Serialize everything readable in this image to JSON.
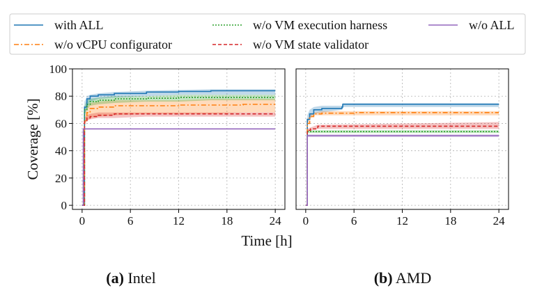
{
  "figure": {
    "x_label": "Time [h]",
    "y_label": "Coverage [%]"
  },
  "legend": {
    "placement": "top",
    "entries": [
      {
        "name": "with ALL",
        "color": "#1f77b4",
        "dash": "solid"
      },
      {
        "name": "w/o vCPU configurator",
        "color": "#ff7f0e",
        "dash": "dashdot"
      },
      {
        "name": "w/o VM execution harness",
        "color": "#2ca02c",
        "dash": "dotted"
      },
      {
        "name": "w/o VM state validator",
        "color": "#d62728",
        "dash": "dashed"
      },
      {
        "name": "w/o ALL",
        "color": "#9467bd",
        "dash": "solid"
      }
    ]
  },
  "chart_data": [
    {
      "type": "line",
      "caption_letter": "(a)",
      "caption_name": "Intel",
      "x_ticks": [
        0,
        6,
        12,
        18,
        24
      ],
      "y_ticks": [
        0,
        20,
        40,
        60,
        80,
        100
      ],
      "xlim": [
        -1.2,
        25.2
      ],
      "ylim": [
        -3,
        100
      ],
      "grid": true,
      "series": [
        {
          "name": "with ALL",
          "x": [
            0,
            0.3,
            0.6,
            1,
            2,
            4,
            8,
            12,
            16,
            20,
            24
          ],
          "y": [
            0,
            72,
            78,
            80,
            81,
            82,
            83,
            83.5,
            84,
            84,
            84
          ],
          "band": [
            [
              0,
              0
            ],
            [
              65,
              76
            ],
            [
              72,
              80
            ],
            [
              76,
              81
            ],
            [
              78,
              82
            ],
            [
              79,
              83
            ],
            [
              80,
              84
            ],
            [
              81,
              84.5
            ],
            [
              81,
              85
            ],
            [
              81,
              85
            ],
            [
              81,
              85
            ]
          ]
        },
        {
          "name": "w/o vCPU configurator",
          "x": [
            0,
            0.3,
            0.6,
            1,
            2,
            4,
            8,
            12,
            16,
            20,
            24
          ],
          "y": [
            0,
            62,
            68,
            71,
            72,
            73,
            73,
            73.5,
            73.5,
            74,
            74
          ],
          "band": [
            [
              0,
              0
            ],
            [
              58,
              66
            ],
            [
              62,
              72
            ],
            [
              64,
              75
            ],
            [
              65,
              76
            ],
            [
              66,
              77
            ],
            [
              67,
              77
            ],
            [
              67,
              77
            ],
            [
              67,
              78
            ],
            [
              68,
              78
            ],
            [
              68,
              78
            ]
          ]
        },
        {
          "name": "w/o VM execution harness",
          "x": [
            0,
            0.3,
            0.6,
            1,
            2,
            4,
            8,
            12,
            16,
            20,
            24
          ],
          "y": [
            0,
            70,
            74,
            76,
            77,
            78,
            78.5,
            79,
            79,
            79,
            79
          ],
          "band": [
            [
              0,
              0
            ],
            [
              66,
              73
            ],
            [
              70,
              77
            ],
            [
              73,
              78
            ],
            [
              74,
              79
            ],
            [
              75,
              80
            ],
            [
              76,
              80
            ],
            [
              76,
              81
            ],
            [
              77,
              81
            ],
            [
              77,
              81
            ],
            [
              77,
              81
            ]
          ]
        },
        {
          "name": "w/o VM state validator",
          "x": [
            0,
            0.3,
            0.6,
            1,
            2,
            4,
            8,
            12,
            16,
            20,
            24
          ],
          "y": [
            0,
            62,
            64,
            65,
            66,
            67,
            67,
            67,
            67,
            67,
            67
          ],
          "band": [
            [
              0,
              0
            ],
            [
              60,
              64
            ],
            [
              62,
              66
            ],
            [
              63,
              67
            ],
            [
              64,
              68
            ],
            [
              64,
              68
            ],
            [
              65,
              68
            ],
            [
              65,
              68
            ],
            [
              65,
              68
            ],
            [
              65,
              68
            ],
            [
              65,
              68
            ]
          ]
        },
        {
          "name": "w/o ALL",
          "x": [
            0,
            0.15,
            0.3,
            24
          ],
          "y": [
            0,
            56,
            56,
            56
          ],
          "band": [
            [
              0,
              0
            ],
            [
              56,
              56
            ],
            [
              56,
              56
            ],
            [
              56,
              56
            ]
          ]
        }
      ]
    },
    {
      "type": "line",
      "caption_letter": "(b)",
      "caption_name": "AMD",
      "x_ticks": [
        0,
        6,
        12,
        18,
        24
      ],
      "y_ticks": [
        0,
        20,
        40,
        60,
        80,
        100
      ],
      "xlim": [
        -1.2,
        25.2
      ],
      "ylim": [
        -3,
        100
      ],
      "grid": true,
      "series": [
        {
          "name": "with ALL",
          "x": [
            0,
            0.2,
            0.5,
            1,
            2,
            4.5,
            4.6,
            24
          ],
          "y": [
            0,
            63,
            67,
            70,
            71,
            72,
            74,
            74
          ],
          "band": [
            [
              0,
              0
            ],
            [
              60,
              66
            ],
            [
              64,
              70
            ],
            [
              67,
              72
            ],
            [
              68,
              73
            ],
            [
              70,
              73
            ],
            [
              72,
              75
            ],
            [
              72,
              75
            ]
          ]
        },
        {
          "name": "w/o vCPU configurator",
          "x": [
            0,
            0.2,
            0.5,
            1,
            2,
            6,
            24
          ],
          "y": [
            0,
            60,
            65,
            67,
            67.5,
            68,
            68
          ],
          "band": [
            [
              0,
              0
            ],
            [
              58,
              62
            ],
            [
              63,
              66
            ],
            [
              66,
              68
            ],
            [
              66,
              69
            ],
            [
              66,
              69
            ],
            [
              66,
              69
            ]
          ]
        },
        {
          "name": "w/o VM execution harness",
          "x": [
            0,
            0.2,
            24
          ],
          "y": [
            0,
            54,
            54
          ],
          "band": [
            [
              0,
              0
            ],
            [
              53,
              55
            ],
            [
              53,
              55
            ]
          ]
        },
        {
          "name": "w/o VM state validator",
          "x": [
            0,
            0.2,
            0.6,
            1.5,
            24
          ],
          "y": [
            0,
            55,
            56,
            58,
            58
          ],
          "band": [
            [
              0,
              0
            ],
            [
              54,
              56
            ],
            [
              55,
              57
            ],
            [
              56,
              59
            ],
            [
              56,
              61
            ]
          ]
        },
        {
          "name": "w/o ALL",
          "x": [
            0,
            0.2,
            24
          ],
          "y": [
            0,
            51,
            51
          ],
          "band": [
            [
              0,
              0
            ],
            [
              50,
              52
            ],
            [
              50,
              52
            ]
          ]
        }
      ]
    }
  ]
}
